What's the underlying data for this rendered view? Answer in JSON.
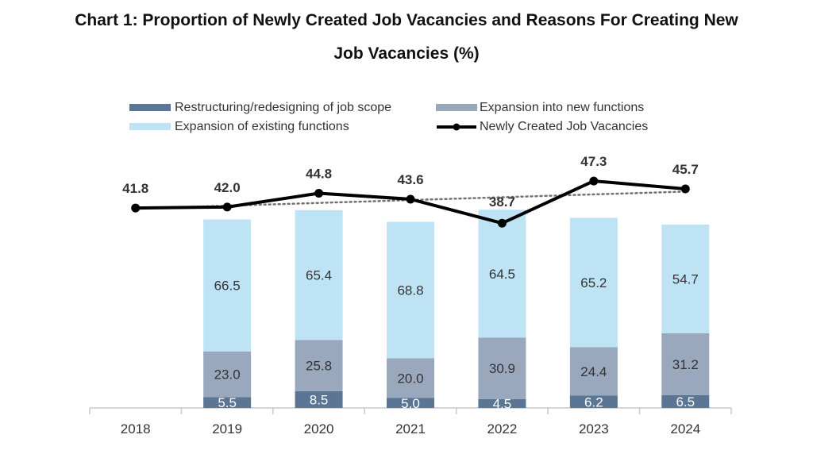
{
  "chart_data": {
    "type": "bar",
    "title_line1": "Chart 1: Proportion of Newly Created Job Vacancies and Reasons For Creating New",
    "title_line2": "Job Vacancies (%)",
    "categories": [
      "2018",
      "2019",
      "2020",
      "2021",
      "2022",
      "2023",
      "2024"
    ],
    "series": [
      {
        "name": "Restructuring/redesigning of job scope",
        "kind": "stacked-bar",
        "color": "#5b7594",
        "values": [
          null,
          5.5,
          8.5,
          5.0,
          4.5,
          6.2,
          6.5
        ],
        "labels": [
          "",
          "5.5",
          "8.5",
          "5.0",
          "4.5",
          "6.2",
          "6.5"
        ]
      },
      {
        "name": "Expansion into new functions",
        "kind": "stacked-bar",
        "color": "#9aa8bd",
        "values": [
          null,
          23.0,
          25.8,
          20.0,
          30.9,
          24.4,
          31.2
        ],
        "labels": [
          "",
          "23.0",
          "25.8",
          "20.0",
          "30.9",
          "24.4",
          "31.2"
        ]
      },
      {
        "name": "Expansion of existing functions",
        "kind": "stacked-bar",
        "color": "#bde3f5",
        "values": [
          null,
          66.5,
          65.4,
          68.8,
          64.5,
          65.2,
          54.7
        ],
        "labels": [
          "",
          "66.5",
          "65.4",
          "68.8",
          "64.5",
          "65.2",
          "54.7"
        ]
      },
      {
        "name": "Newly Created Job Vacancies",
        "kind": "line",
        "color": "#000000",
        "values": [
          41.8,
          42.0,
          44.8,
          43.6,
          38.7,
          47.3,
          45.7
        ],
        "labels": [
          "41.8",
          "42.0",
          "44.8",
          "43.6",
          "38.7",
          "47.3",
          "45.7"
        ]
      }
    ],
    "trendline": {
      "style": "dotted",
      "color": "#707070",
      "of": "Newly Created Job Vacancies"
    },
    "legend_position": "top",
    "bar_axis_range": [
      0,
      100
    ],
    "line_axis_range": [
      0,
      50
    ]
  }
}
